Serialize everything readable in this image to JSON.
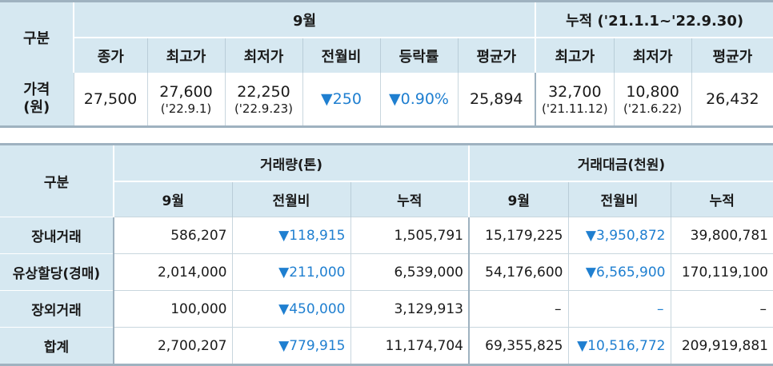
{
  "table1": {
    "gubun": "구분",
    "group_month": "9월",
    "group_cumulative": "누적 ('21.1.1~'22.9.30)",
    "headers": [
      "종가",
      "최고가",
      "최저가",
      "전월비",
      "등락률",
      "평균가",
      "최고가",
      "최저가",
      "평균가"
    ],
    "row_label_line1": "가격",
    "row_label_line2": "(원)",
    "cells": {
      "close": "27,500",
      "high": "27,600",
      "high_date": "('22.9.1)",
      "low": "22,250",
      "low_date": "('22.9.23)",
      "mom": "▼250",
      "rate": "▼0.90%",
      "avg": "25,894",
      "cum_high": "32,700",
      "cum_high_date": "('21.11.12)",
      "cum_low": "10,800",
      "cum_low_date": "('21.6.22)",
      "cum_avg": "26,432"
    }
  },
  "table2": {
    "gubun": "구분",
    "group_volume": "거래량(톤)",
    "group_amount": "거래대금(천원)",
    "headers": [
      "9월",
      "전월비",
      "누적",
      "9월",
      "전월비",
      "누적"
    ],
    "rows": [
      {
        "label": "장내거래",
        "v": [
          "586,207",
          "▼118,915",
          "1,505,791",
          "15,179,225",
          "▼3,950,872",
          "39,800,781"
        ]
      },
      {
        "label": "유상할당(경매)",
        "v": [
          "2,014,000",
          "▼211,000",
          "6,539,000",
          "54,176,600",
          "▼6,565,900",
          "170,119,100"
        ]
      },
      {
        "label": "장외거래",
        "v": [
          "100,000",
          "▼450,000",
          "3,129,913",
          "–",
          "–",
          "–"
        ]
      },
      {
        "label": "합계",
        "v": [
          "2,700,207",
          "▼779,915",
          "11,174,704",
          "69,355,825",
          "▼10,516,772",
          "209,919,881"
        ]
      }
    ]
  },
  "colors": {
    "header_bg": "#d6e8f1",
    "border": "#9fb2c0",
    "down": "#1f7fd0"
  }
}
